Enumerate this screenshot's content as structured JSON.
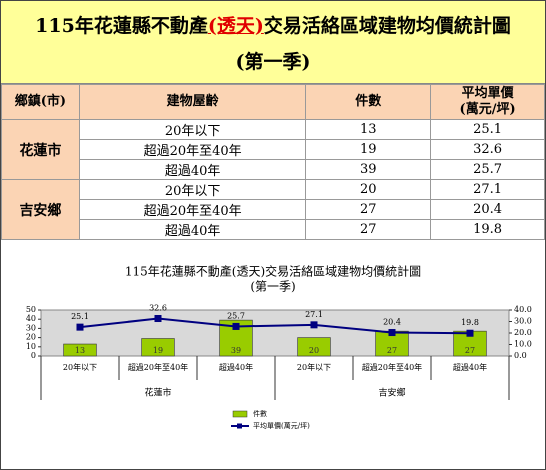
{
  "header": {
    "title_start": "115年花蓮縣不動產",
    "title_highlight": "(透天)",
    "title_end": "交易活絡區域建物均價統計圖",
    "subtitle": "(第一季)"
  },
  "table": {
    "columns": [
      "鄉鎮(市)",
      "建物屋齡",
      "件數",
      "平均單價",
      "(萬元/坪)"
    ],
    "groups": [
      {
        "name": "花蓮市",
        "rows": [
          [
            "20年以下",
            13,
            25.1
          ],
          [
            "超過20年至40年",
            19,
            32.6
          ],
          [
            "超過40年",
            39,
            25.7
          ]
        ]
      },
      {
        "name": "吉安鄉",
        "rows": [
          [
            "20年以下",
            20,
            27.1
          ],
          [
            "超過20年至40年",
            27,
            20.4
          ],
          [
            "超過40年",
            27,
            19.8
          ]
        ]
      }
    ]
  },
  "chart_data": {
    "type": "bar",
    "title": "115年花蓮縣不動產(透天)交易活絡區域建物均價統計圖",
    "subtitle": "(第一季)",
    "categories": [
      "20年以下",
      "超過20年至40年",
      "超過40年",
      "20年以下",
      "超過20年至40年",
      "超過40年"
    ],
    "groups": [
      {
        "name": "花蓮市",
        "span": 3
      },
      {
        "name": "吉安鄉",
        "span": 3
      }
    ],
    "series": [
      {
        "name": "件數",
        "type": "bar",
        "color": "#99cc00",
        "values": [
          13,
          19,
          39,
          20,
          27,
          27
        ]
      },
      {
        "name": "平均單價(萬元/坪)",
        "type": "line",
        "axis": "y2",
        "color": "#000080",
        "values": [
          25.1,
          32.6,
          25.7,
          27.1,
          20.4,
          19.8
        ]
      }
    ],
    "ylim": [
      0,
      50
    ],
    "yticks": [
      0,
      10,
      20,
      30,
      40,
      50
    ],
    "y2lim": [
      0,
      40
    ],
    "y2ticks": [
      {
        "value": 0,
        "label": "0.0"
      },
      {
        "value": 10,
        "label": "10.0"
      },
      {
        "value": 20,
        "label": "20.0"
      },
      {
        "value": 30,
        "label": "30.0"
      },
      {
        "value": 40,
        "label": "40.0"
      }
    ]
  }
}
